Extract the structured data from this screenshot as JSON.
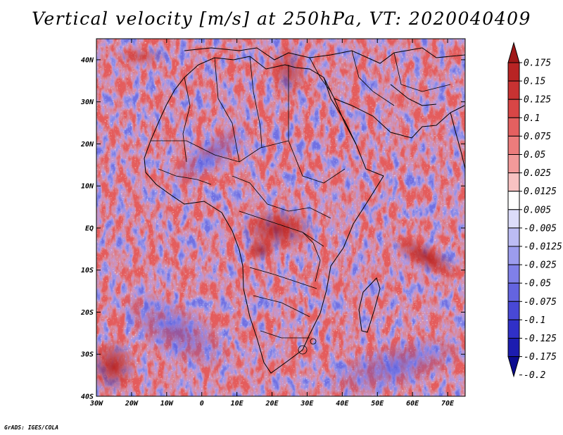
{
  "title": "Vertical velocity [m/s] at 250hPa, VT: 2020040409",
  "footer": "GrADS: IGES/COLA",
  "map": {
    "lon_range": [
      -30,
      75
    ],
    "lat_range": [
      -40,
      45
    ],
    "lon_ticks": [
      {
        "value": -30,
        "label": "30W"
      },
      {
        "value": -20,
        "label": "20W"
      },
      {
        "value": -10,
        "label": "10W"
      },
      {
        "value": 0,
        "label": "0"
      },
      {
        "value": 10,
        "label": "10E"
      },
      {
        "value": 20,
        "label": "20E"
      },
      {
        "value": 30,
        "label": "30E"
      },
      {
        "value": 40,
        "label": "40E"
      },
      {
        "value": 50,
        "label": "50E"
      },
      {
        "value": 60,
        "label": "60E"
      },
      {
        "value": 70,
        "label": "70E"
      }
    ],
    "lat_ticks": [
      {
        "value": 40,
        "label": "40N"
      },
      {
        "value": 30,
        "label": "30N"
      },
      {
        "value": 20,
        "label": "20N"
      },
      {
        "value": 10,
        "label": "10N"
      },
      {
        "value": 0,
        "label": "EQ"
      },
      {
        "value": -10,
        "label": "10S"
      },
      {
        "value": -20,
        "label": "20S"
      },
      {
        "value": -30,
        "label": "30S"
      },
      {
        "value": -40,
        "label": "40S"
      }
    ]
  },
  "colorbar": {
    "labels": [
      "0.175",
      "0.15",
      "0.125",
      "0.1",
      "0.075",
      "0.05",
      "0.025",
      "0.0125",
      "0.005",
      "-0.005",
      "-0.0125",
      "-0.025",
      "-0.05",
      "-0.075",
      "-0.1",
      "-0.125",
      "-0.175",
      "-0.2"
    ],
    "colors": [
      "#a01818",
      "#b82424",
      "#c83232",
      "#d84646",
      "#e46060",
      "#ec7c7c",
      "#f29a9a",
      "#f8c2c2",
      "#ffffff",
      "#dcdcfa",
      "#bcbcf4",
      "#9c9cee",
      "#8080e8",
      "#6464e0",
      "#4848d6",
      "#3030c8",
      "#1c1cb0",
      "#0c0c90"
    ]
  }
}
